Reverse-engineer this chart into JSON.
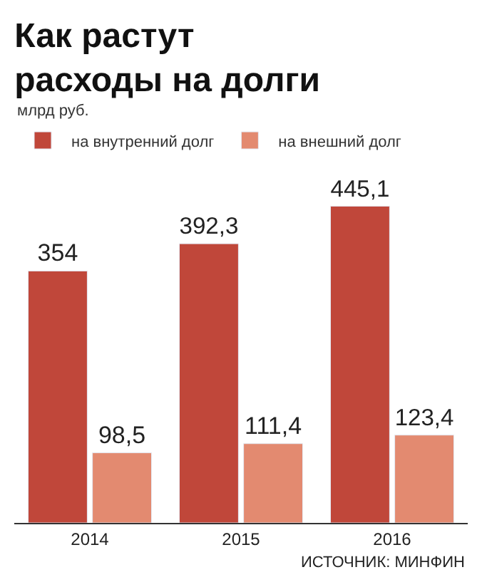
{
  "chart_data": {
    "type": "bar",
    "title": "Как растут\nрасходы на долги",
    "subtitle": "млрд руб.",
    "categories": [
      "2014",
      "2015",
      "2016"
    ],
    "series": [
      {
        "name": "на внутренний долг",
        "color": "#c0473a",
        "values": [
          354,
          392.3,
          445.1
        ],
        "value_labels": [
          "354",
          "392,3",
          "445,1"
        ]
      },
      {
        "name": "на внешний долг",
        "color": "#e38a70",
        "values": [
          98.5,
          111.4,
          123.4
        ],
        "value_labels": [
          "98,5",
          "111,4",
          "123,4"
        ]
      }
    ],
    "annotations": [
      "ИСТОЧНИК: МИНФИН"
    ],
    "legend": "top left"
  }
}
